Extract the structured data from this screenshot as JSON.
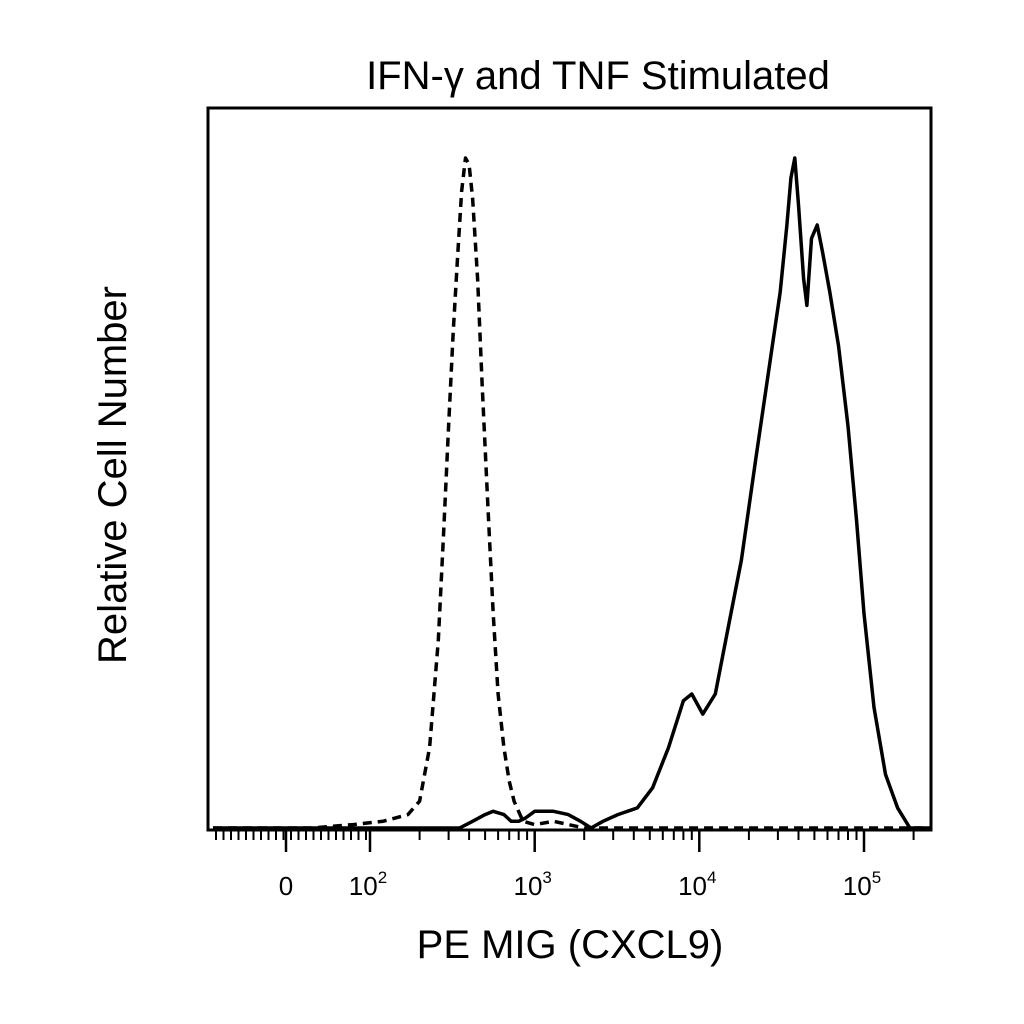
{
  "chart_data": {
    "type": "line",
    "title": "IFN-γ and TNF Stimulated",
    "xlabel": "PE  MIG (CXCL9)",
    "ylabel": "Relative Cell Number",
    "x_scale": "biexponential (log above 10^2)",
    "xlim": [
      -200,
      250000
    ],
    "ylim": [
      0,
      1.0
    ],
    "x_tick_labels": [
      {
        "value": 0,
        "base": "0",
        "exp": ""
      },
      {
        "value": 100,
        "base": "10",
        "exp": "2"
      },
      {
        "value": 1000,
        "base": "10",
        "exp": "3"
      },
      {
        "value": 10000,
        "base": "10",
        "exp": "4"
      },
      {
        "value": 100000,
        "base": "10",
        "exp": "5"
      }
    ],
    "grid": false,
    "legend": "none",
    "series": [
      {
        "style": "dashed",
        "color": "#000000",
        "points": [
          [
            -200,
            0.0
          ],
          [
            30,
            0.0
          ],
          [
            80,
            0.005
          ],
          [
            120,
            0.01
          ],
          [
            170,
            0.02
          ],
          [
            200,
            0.04
          ],
          [
            230,
            0.12
          ],
          [
            260,
            0.28
          ],
          [
            280,
            0.44
          ],
          [
            300,
            0.6
          ],
          [
            320,
            0.74
          ],
          [
            340,
            0.85
          ],
          [
            360,
            0.95
          ],
          [
            380,
            1.0
          ],
          [
            400,
            0.99
          ],
          [
            420,
            0.94
          ],
          [
            450,
            0.82
          ],
          [
            480,
            0.66
          ],
          [
            520,
            0.48
          ],
          [
            560,
            0.32
          ],
          [
            600,
            0.2
          ],
          [
            650,
            0.12
          ],
          [
            700,
            0.07
          ],
          [
            750,
            0.04
          ],
          [
            850,
            0.01
          ],
          [
            1000,
            0.005
          ],
          [
            1300,
            0.01
          ],
          [
            2000,
            0.0
          ],
          [
            250000,
            0.0
          ]
        ]
      },
      {
        "style": "solid",
        "color": "#000000",
        "points": [
          [
            -200,
            0.0
          ],
          [
            350,
            0.0
          ],
          [
            420,
            0.01
          ],
          [
            500,
            0.02
          ],
          [
            560,
            0.025
          ],
          [
            650,
            0.02
          ],
          [
            720,
            0.01
          ],
          [
            800,
            0.01
          ],
          [
            880,
            0.015
          ],
          [
            1000,
            0.025
          ],
          [
            1300,
            0.025
          ],
          [
            1600,
            0.02
          ],
          [
            1900,
            0.01
          ],
          [
            2200,
            0.0
          ],
          [
            2600,
            0.01
          ],
          [
            3200,
            0.02
          ],
          [
            4200,
            0.03
          ],
          [
            5200,
            0.06
          ],
          [
            6500,
            0.12
          ],
          [
            8000,
            0.19
          ],
          [
            9000,
            0.2
          ],
          [
            10500,
            0.17
          ],
          [
            12500,
            0.2
          ],
          [
            15000,
            0.3
          ],
          [
            18000,
            0.4
          ],
          [
            22000,
            0.55
          ],
          [
            27000,
            0.7
          ],
          [
            31000,
            0.8
          ],
          [
            34000,
            0.9
          ],
          [
            36000,
            0.97
          ],
          [
            38000,
            1.0
          ],
          [
            40000,
            0.93
          ],
          [
            43000,
            0.82
          ],
          [
            45000,
            0.78
          ],
          [
            48000,
            0.88
          ],
          [
            52000,
            0.9
          ],
          [
            56000,
            0.86
          ],
          [
            62000,
            0.8
          ],
          [
            70000,
            0.72
          ],
          [
            80000,
            0.6
          ],
          [
            90000,
            0.46
          ],
          [
            100000,
            0.32
          ],
          [
            115000,
            0.18
          ],
          [
            135000,
            0.08
          ],
          [
            160000,
            0.03
          ],
          [
            190000,
            0.0
          ],
          [
            250000,
            0.0
          ]
        ]
      }
    ]
  }
}
